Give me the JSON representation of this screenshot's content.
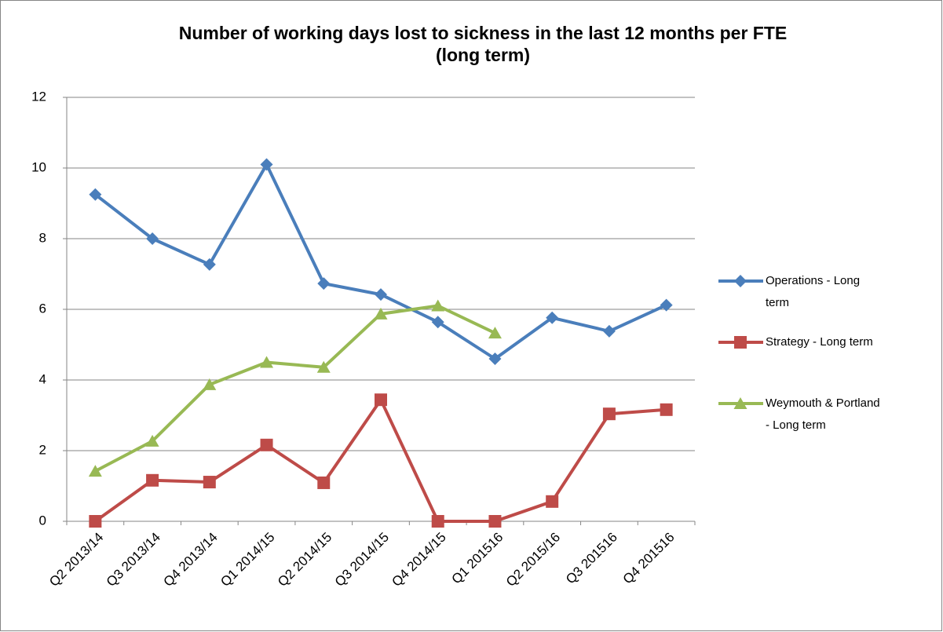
{
  "chart_data": {
    "type": "line",
    "title": "Number of working days lost to sickness in the last 12 months per FTE (long term)",
    "categories": [
      "Q2 2013/14",
      "Q3 2013/14",
      "Q4 2013/14",
      "Q1 2014/15",
      "Q2 2014/15",
      "Q3 2014/15",
      "Q4 2014/15",
      "Q1 201516",
      "Q2 2015/16",
      "Q3 201516",
      "Q4 201516"
    ],
    "series": [
      {
        "name": "Operations - Long term",
        "color": "#4a7ebb",
        "marker": "diamond",
        "values": [
          9.25,
          8.0,
          7.27,
          10.1,
          6.73,
          6.42,
          5.64,
          4.6,
          5.76,
          5.38,
          6.12
        ]
      },
      {
        "name": "Strategy - Long term",
        "color": "#be4b48",
        "marker": "square",
        "values": [
          0,
          1.16,
          1.11,
          2.16,
          1.09,
          3.44,
          0,
          0,
          0.56,
          3.04,
          3.16
        ]
      },
      {
        "name": "Weymouth & Portland - Long term",
        "color": "#98b954",
        "marker": "triangle",
        "values": [
          1.42,
          2.27,
          3.87,
          4.5,
          4.36,
          5.87,
          6.1,
          5.33,
          null,
          null,
          null
        ]
      }
    ],
    "ylim": [
      0,
      12
    ],
    "yticks": [
      0,
      2,
      4,
      6,
      8,
      10,
      12
    ],
    "grid": true,
    "legend": "right"
  }
}
